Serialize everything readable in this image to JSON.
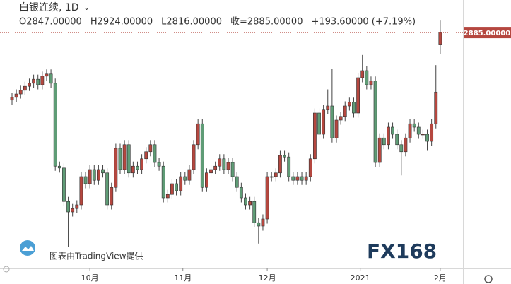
{
  "chart_data": {
    "type": "candlestick",
    "title": "白银连续, 1D",
    "ohlc_text": [
      "O2847.00000",
      "H2924.00000",
      "L2816.00000",
      "收=2885.00000",
      "+193.60000 (+7.19%)"
    ],
    "last_price_label": "2885.00000",
    "credit": "图表由TradingView提供",
    "logo": "FX168",
    "up_color": "#b5473f",
    "down_color": "#5f9c76",
    "ylim": [
      2128.5,
      2991
    ],
    "xticks": [
      {
        "value": 18,
        "label": "10月"
      },
      {
        "value": 39.5,
        "label": "11月"
      },
      {
        "value": 59,
        "label": "12月"
      },
      {
        "value": 80.5,
        "label": "2021"
      },
      {
        "value": 99,
        "label": "2月"
      }
    ],
    "open": [
      2665,
      2674,
      2685,
      2697,
      2710,
      2720,
      2733,
      2715,
      2743,
      2750,
      2720,
      2450,
      2444,
      2335,
      2301,
      2312,
      2324,
      2416,
      2393,
      2439,
      2404,
      2439,
      2428,
      2324,
      2381,
      2508,
      2439,
      2520,
      2428,
      2450,
      2439,
      2474,
      2497,
      2520,
      2462,
      2450,
      2347,
      2358,
      2393,
      2370,
      2416,
      2404,
      2439,
      2520,
      2588,
      2381,
      2428,
      2439,
      2450,
      2474,
      2439,
      2462,
      2416,
      2381,
      2347,
      2324,
      2335,
      2266,
      2255,
      2278,
      2416,
      2416,
      2428,
      2485,
      2480,
      2416,
      2404,
      2416,
      2404,
      2416,
      2474,
      2623,
      2554,
      2635,
      2646,
      2542,
      2600,
      2612,
      2646,
      2658,
      2623,
      2738,
      2761,
      2715,
      2727,
      2462,
      2542,
      2520,
      2577,
      2554,
      2520,
      2497,
      2542,
      2588,
      2577,
      2554,
      2554,
      2531,
      2588,
      2847
    ],
    "high": [
      2689,
      2700,
      2712,
      2725,
      2735,
      2748,
      2748,
      2758,
      2765,
      2765,
      2735,
      2465,
      2459,
      2350,
      2327,
      2339,
      2431,
      2431,
      2454,
      2454,
      2454,
      2454,
      2443,
      2396,
      2523,
      2523,
      2535,
      2535,
      2465,
      2465,
      2489,
      2512,
      2535,
      2535,
      2477,
      2465,
      2373,
      2408,
      2408,
      2431,
      2431,
      2454,
      2535,
      2603,
      2603,
      2443,
      2454,
      2465,
      2489,
      2489,
      2477,
      2477,
      2431,
      2396,
      2362,
      2350,
      2350,
      2281,
      2293,
      2431,
      2431,
      2443,
      2500,
      2500,
      2495,
      2431,
      2431,
      2431,
      2431,
      2489,
      2638,
      2638,
      2650,
      2700,
      2766,
      2615,
      2627,
      2661,
      2673,
      2673,
      2753,
      2812,
      2776,
      2742,
      2742,
      2557,
      2557,
      2592,
      2592,
      2569,
      2535,
      2557,
      2603,
      2603,
      2592,
      2569,
      2569,
      2603,
      2779,
      2924
    ],
    "low": [
      2650,
      2659,
      2670,
      2682,
      2695,
      2705,
      2700,
      2700,
      2728,
      2705,
      2435,
      2429,
      2320,
      2186,
      2286,
      2297,
      2309,
      2378,
      2378,
      2389,
      2389,
      2413,
      2309,
      2309,
      2366,
      2424,
      2424,
      2413,
      2413,
      2424,
      2424,
      2459,
      2482,
      2447,
      2435,
      2332,
      2332,
      2343,
      2355,
      2355,
      2389,
      2389,
      2424,
      2505,
      2366,
      2366,
      2413,
      2424,
      2435,
      2424,
      2424,
      2401,
      2366,
      2332,
      2309,
      2309,
      2251,
      2198,
      2240,
      2263,
      2401,
      2401,
      2413,
      2465,
      2401,
      2389,
      2389,
      2389,
      2389,
      2401,
      2459,
      2539,
      2539,
      2620,
      2527,
      2527,
      2585,
      2597,
      2631,
      2608,
      2608,
      2723,
      2700,
      2700,
      2447,
      2447,
      2505,
      2505,
      2539,
      2505,
      2420,
      2482,
      2527,
      2562,
      2539,
      2539,
      2500,
      2516,
      2573,
      2816
    ],
    "close": [
      2674,
      2685,
      2697,
      2710,
      2720,
      2733,
      2715,
      2743,
      2750,
      2720,
      2450,
      2444,
      2335,
      2301,
      2312,
      2324,
      2416,
      2393,
      2439,
      2404,
      2439,
      2428,
      2324,
      2381,
      2508,
      2439,
      2520,
      2428,
      2450,
      2439,
      2474,
      2497,
      2520,
      2462,
      2450,
      2347,
      2358,
      2393,
      2370,
      2416,
      2404,
      2439,
      2520,
      2588,
      2381,
      2428,
      2439,
      2450,
      2474,
      2439,
      2462,
      2416,
      2381,
      2347,
      2324,
      2335,
      2266,
      2255,
      2278,
      2416,
      2416,
      2428,
      2485,
      2480,
      2416,
      2404,
      2416,
      2404,
      2416,
      2474,
      2623,
      2554,
      2635,
      2646,
      2542,
      2600,
      2612,
      2646,
      2658,
      2623,
      2738,
      2761,
      2715,
      2727,
      2462,
      2542,
      2520,
      2577,
      2554,
      2520,
      2497,
      2542,
      2588,
      2577,
      2554,
      2554,
      2531,
      2588,
      2691.4,
      2885
    ]
  }
}
